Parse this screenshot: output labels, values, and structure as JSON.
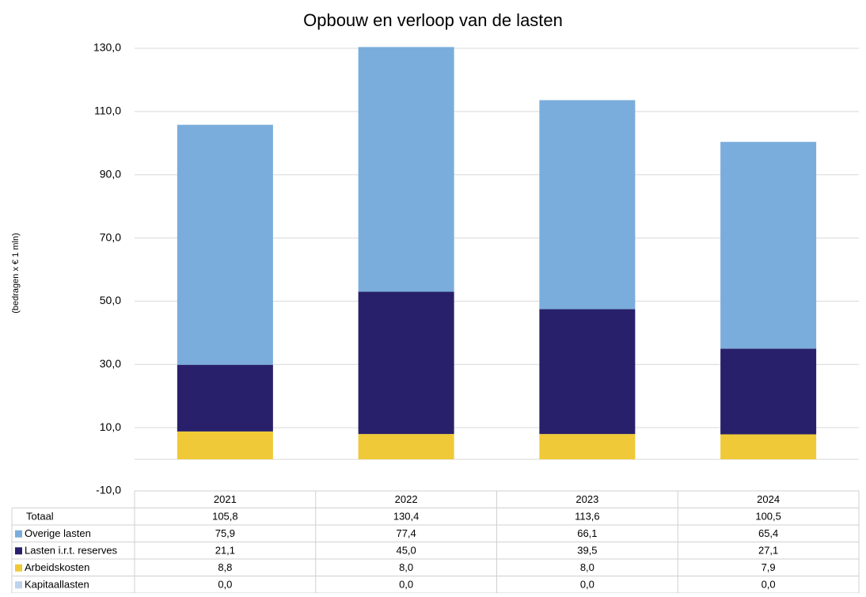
{
  "chart_data": {
    "type": "stacked_bar",
    "title": "Opbouw en verloop van de lasten",
    "y_label": "(bedragen x € 1 mln)",
    "categories": [
      "2021",
      "2022",
      "2023",
      "2024"
    ],
    "ylim": [
      -10,
      130
    ],
    "yticks": [
      {
        "value": -10,
        "label": "-10,0"
      },
      {
        "value": 10,
        "label": "10,0"
      },
      {
        "value": 30,
        "label": "30,0"
      },
      {
        "value": 50,
        "label": "50,0"
      },
      {
        "value": 70,
        "label": "70,0"
      },
      {
        "value": 90,
        "label": "90,0"
      },
      {
        "value": 110,
        "label": "110,0"
      },
      {
        "value": 130,
        "label": "130,0"
      }
    ],
    "grid": true,
    "totals": {
      "name": "Totaal",
      "values": [
        105.8,
        130.4,
        113.6,
        100.5
      ],
      "value_labels": [
        "105,8",
        "130,4",
        "113,6",
        "100,5"
      ]
    },
    "series": [
      {
        "name": "Overige lasten",
        "color": "#7aaddc",
        "values": [
          75.9,
          77.4,
          66.1,
          65.4
        ],
        "value_labels": [
          "75,9",
          "77,4",
          "66,1",
          "65,4"
        ]
      },
      {
        "name": "Lasten i.r.t. reserves",
        "color": "#28206a",
        "values": [
          21.1,
          45.0,
          39.5,
          27.1
        ],
        "value_labels": [
          "21,1",
          "45,0",
          "39,5",
          "27,1"
        ]
      },
      {
        "name": "Arbeidskosten",
        "color": "#efc937",
        "values": [
          8.8,
          8.0,
          8.0,
          7.9
        ],
        "value_labels": [
          "8,8",
          "8,0",
          "8,0",
          "7,9"
        ]
      },
      {
        "name": "Kapitaallasten",
        "color": "#bcd3ea",
        "values": [
          0.0,
          0.0,
          0.0,
          0.0
        ],
        "value_labels": [
          "0,0",
          "0,0",
          "0,0",
          "0,0"
        ]
      }
    ]
  }
}
